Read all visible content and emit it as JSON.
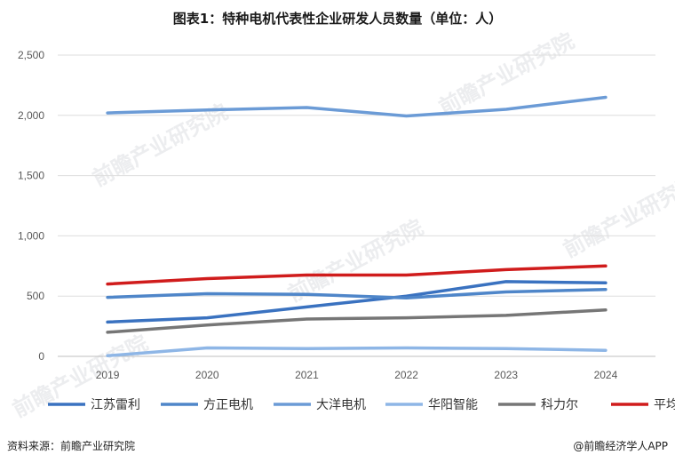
{
  "chart_data": {
    "type": "line",
    "title": "图表1：特种电机代表性企业研发人员数量（单位：人）",
    "xlabel": "",
    "ylabel": "",
    "categories": [
      "2019",
      "2020",
      "2021",
      "2022",
      "2023",
      "2024"
    ],
    "ylim": [
      0,
      2500
    ],
    "yticks": [
      0,
      500,
      1000,
      1500,
      2000,
      2500
    ],
    "ytick_labels": [
      "0",
      "500",
      "1,000",
      "1,500",
      "2,000",
      "2,500"
    ],
    "grid": true,
    "legend_position": "bottom",
    "series": [
      {
        "name": "江苏雷利",
        "color": "#3a72c0",
        "values": [
          285,
          320,
          410,
          500,
          620,
          610
        ]
      },
      {
        "name": "方正电机",
        "color": "#4f86c9",
        "values": [
          490,
          520,
          515,
          485,
          535,
          555
        ]
      },
      {
        "name": "大洋电机",
        "color": "#6b9bd6",
        "values": [
          2020,
          2045,
          2065,
          1995,
          2050,
          2150
        ]
      },
      {
        "name": "华阳智能",
        "color": "#8eb6e6",
        "values": [
          5,
          70,
          65,
          70,
          65,
          50
        ]
      },
      {
        "name": "科力尔",
        "color": "#767676",
        "values": [
          200,
          260,
          310,
          320,
          340,
          385
        ]
      },
      {
        "name": "平均值",
        "color": "#d01c1c",
        "values": [
          600,
          645,
          675,
          675,
          720,
          750
        ]
      }
    ]
  },
  "watermark": "前瞻产业研究院",
  "footer": {
    "source": "资料来源：前瞻产业研究院",
    "brand": "@前瞻经济学人APP"
  }
}
